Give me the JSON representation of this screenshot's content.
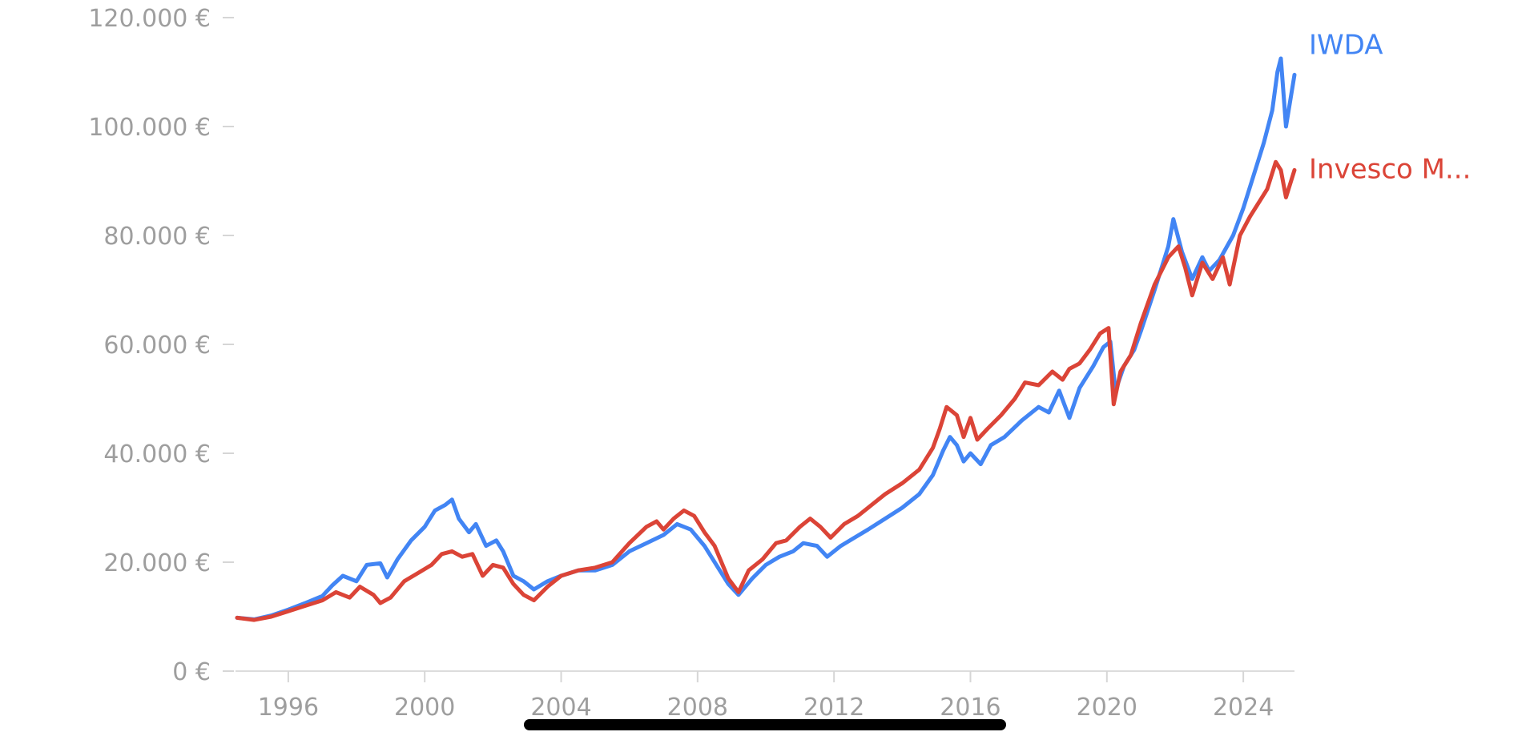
{
  "chart_data": {
    "type": "line",
    "xlabel": "",
    "ylabel": "",
    "ylim": [
      0,
      120000
    ],
    "xlim": [
      1994.5,
      2025.5
    ],
    "y_ticks": [
      {
        "value": 0,
        "label": "0 €"
      },
      {
        "value": 20000,
        "label": "20.000 €"
      },
      {
        "value": 40000,
        "label": "40.000 €"
      },
      {
        "value": 60000,
        "label": "60.000 €"
      },
      {
        "value": 80000,
        "label": "80.000 €"
      },
      {
        "value": 100000,
        "label": "100.000 €"
      },
      {
        "value": 120000,
        "label": "120.000 €"
      }
    ],
    "x_ticks": [
      {
        "value": 1996,
        "label": "1996"
      },
      {
        "value": 2000,
        "label": "2000"
      },
      {
        "value": 2004,
        "label": "2004"
      },
      {
        "value": 2008,
        "label": "2008"
      },
      {
        "value": 2012,
        "label": "2012"
      },
      {
        "value": 2016,
        "label": "2016"
      },
      {
        "value": 2020,
        "label": "2020"
      },
      {
        "value": 2024,
        "label": "2024"
      }
    ],
    "grid": false,
    "legend_position": "right, at series ends",
    "series": [
      {
        "name": "IWDA",
        "color": "#4285f4",
        "points": [
          [
            1994.5,
            9800
          ],
          [
            1995.0,
            9500
          ],
          [
            1995.5,
            10200
          ],
          [
            1996.0,
            11300
          ],
          [
            1996.5,
            12500
          ],
          [
            1997.0,
            13800
          ],
          [
            1997.3,
            15800
          ],
          [
            1997.6,
            17500
          ],
          [
            1998.0,
            16500
          ],
          [
            1998.3,
            19500
          ],
          [
            1998.7,
            19800
          ],
          [
            1998.9,
            17200
          ],
          [
            1999.2,
            20500
          ],
          [
            1999.6,
            24000
          ],
          [
            2000.0,
            26500
          ],
          [
            2000.3,
            29500
          ],
          [
            2000.6,
            30500
          ],
          [
            2000.8,
            31500
          ],
          [
            2001.0,
            28000
          ],
          [
            2001.3,
            25500
          ],
          [
            2001.5,
            27000
          ],
          [
            2001.8,
            23000
          ],
          [
            2002.1,
            24000
          ],
          [
            2002.3,
            22000
          ],
          [
            2002.6,
            17500
          ],
          [
            2002.9,
            16500
          ],
          [
            2003.2,
            15000
          ],
          [
            2003.6,
            16500
          ],
          [
            2004.0,
            17500
          ],
          [
            2004.5,
            18500
          ],
          [
            2005.0,
            18500
          ],
          [
            2005.5,
            19500
          ],
          [
            2006.0,
            22000
          ],
          [
            2006.5,
            23500
          ],
          [
            2007.0,
            25000
          ],
          [
            2007.4,
            27000
          ],
          [
            2007.8,
            26000
          ],
          [
            2008.2,
            23000
          ],
          [
            2008.6,
            19000
          ],
          [
            2008.9,
            16000
          ],
          [
            2009.2,
            14000
          ],
          [
            2009.6,
            17000
          ],
          [
            2010.0,
            19500
          ],
          [
            2010.4,
            21000
          ],
          [
            2010.8,
            22000
          ],
          [
            2011.1,
            23500
          ],
          [
            2011.5,
            23000
          ],
          [
            2011.8,
            21000
          ],
          [
            2012.2,
            23000
          ],
          [
            2012.6,
            24500
          ],
          [
            2013.0,
            26000
          ],
          [
            2013.5,
            28000
          ],
          [
            2014.0,
            30000
          ],
          [
            2014.5,
            32500
          ],
          [
            2014.9,
            36000
          ],
          [
            2015.2,
            40500
          ],
          [
            2015.4,
            43000
          ],
          [
            2015.6,
            41500
          ],
          [
            2015.8,
            38500
          ],
          [
            2016.0,
            40000
          ],
          [
            2016.3,
            38000
          ],
          [
            2016.6,
            41500
          ],
          [
            2017.0,
            43000
          ],
          [
            2017.5,
            46000
          ],
          [
            2018.0,
            48500
          ],
          [
            2018.3,
            47500
          ],
          [
            2018.6,
            51500
          ],
          [
            2018.9,
            46500
          ],
          [
            2019.2,
            52000
          ],
          [
            2019.6,
            56000
          ],
          [
            2019.9,
            59500
          ],
          [
            2020.1,
            60500
          ],
          [
            2020.25,
            51500
          ],
          [
            2020.5,
            56000
          ],
          [
            2020.8,
            59000
          ],
          [
            2021.0,
            62500
          ],
          [
            2021.4,
            70000
          ],
          [
            2021.8,
            78000
          ],
          [
            2021.95,
            83000
          ],
          [
            2022.2,
            77000
          ],
          [
            2022.5,
            72000
          ],
          [
            2022.8,
            76000
          ],
          [
            2023.0,
            73500
          ],
          [
            2023.3,
            75500
          ],
          [
            2023.7,
            80000
          ],
          [
            2024.0,
            85000
          ],
          [
            2024.3,
            91000
          ],
          [
            2024.6,
            97000
          ],
          [
            2024.85,
            103000
          ],
          [
            2025.0,
            110000
          ],
          [
            2025.1,
            112500
          ],
          [
            2025.25,
            100000
          ],
          [
            2025.5,
            109500
          ]
        ]
      },
      {
        "name": "Invesco M...",
        "color": "#db4437",
        "points": [
          [
            1994.5,
            9800
          ],
          [
            1995.0,
            9400
          ],
          [
            1995.5,
            10000
          ],
          [
            1996.0,
            11000
          ],
          [
            1996.5,
            12000
          ],
          [
            1997.0,
            13000
          ],
          [
            1997.4,
            14500
          ],
          [
            1997.8,
            13500
          ],
          [
            1998.1,
            15500
          ],
          [
            1998.5,
            14000
          ],
          [
            1998.7,
            12500
          ],
          [
            1999.0,
            13500
          ],
          [
            1999.4,
            16500
          ],
          [
            1999.8,
            18000
          ],
          [
            2000.2,
            19500
          ],
          [
            2000.5,
            21500
          ],
          [
            2000.8,
            22000
          ],
          [
            2001.1,
            21000
          ],
          [
            2001.4,
            21500
          ],
          [
            2001.7,
            17500
          ],
          [
            2002.0,
            19500
          ],
          [
            2002.3,
            19000
          ],
          [
            2002.6,
            16000
          ],
          [
            2002.9,
            14000
          ],
          [
            2003.2,
            13000
          ],
          [
            2003.6,
            15500
          ],
          [
            2004.0,
            17500
          ],
          [
            2004.5,
            18500
          ],
          [
            2005.0,
            19000
          ],
          [
            2005.5,
            20000
          ],
          [
            2006.0,
            23500
          ],
          [
            2006.5,
            26500
          ],
          [
            2006.8,
            27500
          ],
          [
            2007.0,
            26000
          ],
          [
            2007.3,
            28000
          ],
          [
            2007.6,
            29500
          ],
          [
            2007.9,
            28500
          ],
          [
            2008.2,
            25500
          ],
          [
            2008.5,
            23000
          ],
          [
            2008.9,
            17000
          ],
          [
            2009.2,
            14500
          ],
          [
            2009.5,
            18500
          ],
          [
            2009.9,
            20500
          ],
          [
            2010.3,
            23500
          ],
          [
            2010.6,
            24000
          ],
          [
            2011.0,
            26500
          ],
          [
            2011.3,
            28000
          ],
          [
            2011.6,
            26500
          ],
          [
            2011.9,
            24500
          ],
          [
            2012.3,
            27000
          ],
          [
            2012.7,
            28500
          ],
          [
            2013.1,
            30500
          ],
          [
            2013.5,
            32500
          ],
          [
            2014.0,
            34500
          ],
          [
            2014.5,
            37000
          ],
          [
            2014.9,
            41000
          ],
          [
            2015.1,
            44500
          ],
          [
            2015.3,
            48500
          ],
          [
            2015.6,
            47000
          ],
          [
            2015.8,
            43000
          ],
          [
            2016.0,
            46500
          ],
          [
            2016.2,
            42500
          ],
          [
            2016.5,
            44500
          ],
          [
            2016.9,
            47000
          ],
          [
            2017.3,
            50000
          ],
          [
            2017.6,
            53000
          ],
          [
            2018.0,
            52500
          ],
          [
            2018.4,
            55000
          ],
          [
            2018.7,
            53500
          ],
          [
            2018.9,
            55500
          ],
          [
            2019.2,
            56500
          ],
          [
            2019.5,
            59000
          ],
          [
            2019.8,
            62000
          ],
          [
            2020.05,
            63000
          ],
          [
            2020.2,
            49000
          ],
          [
            2020.4,
            55000
          ],
          [
            2020.7,
            58000
          ],
          [
            2021.0,
            64000
          ],
          [
            2021.4,
            71000
          ],
          [
            2021.8,
            76000
          ],
          [
            2022.1,
            78000
          ],
          [
            2022.3,
            74000
          ],
          [
            2022.5,
            69000
          ],
          [
            2022.8,
            75000
          ],
          [
            2023.1,
            72000
          ],
          [
            2023.4,
            76000
          ],
          [
            2023.6,
            71000
          ],
          [
            2023.9,
            80000
          ],
          [
            2024.2,
            83500
          ],
          [
            2024.5,
            86500
          ],
          [
            2024.7,
            88500
          ],
          [
            2024.95,
            93500
          ],
          [
            2025.1,
            92000
          ],
          [
            2025.25,
            87000
          ],
          [
            2025.5,
            92000
          ]
        ]
      }
    ]
  }
}
